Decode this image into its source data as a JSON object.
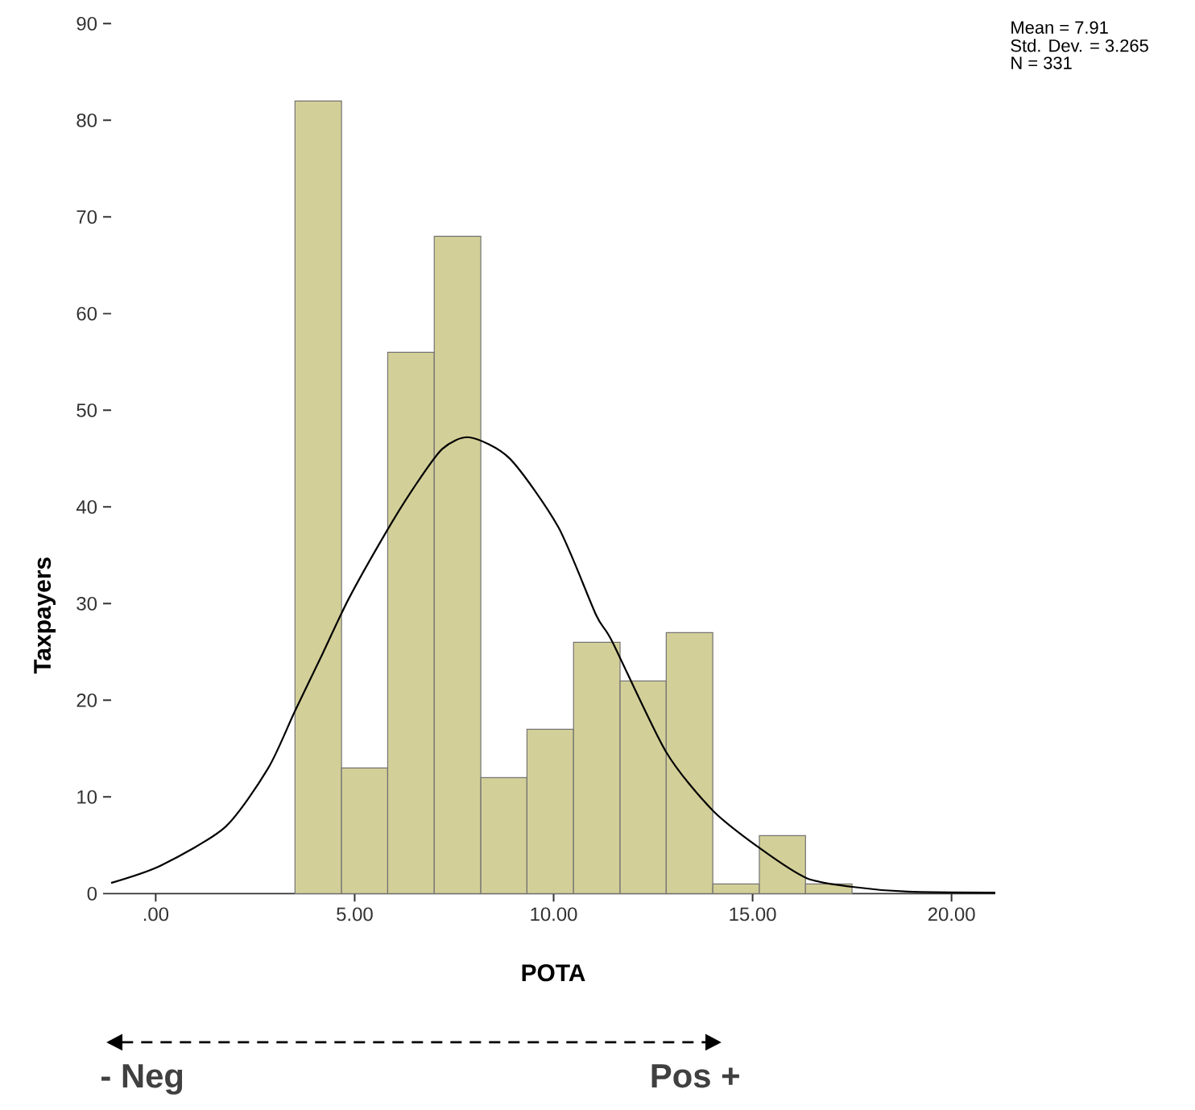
{
  "chart_data": {
    "type": "histogram",
    "xlabel": "POTA",
    "ylabel": "Taxpayers",
    "bins": [
      3.5,
      4.67,
      5.83,
      7.0,
      8.17,
      9.33,
      10.5,
      11.67,
      12.83,
      14.0,
      15.17,
      16.33,
      17.5
    ],
    "values": [
      82,
      13,
      56,
      68,
      12,
      17,
      26,
      22,
      27,
      1,
      6,
      1
    ],
    "color": "#d3cf98",
    "series": [
      {
        "type": "line",
        "color": "#000000",
        "x": [
          -1.12,
          0.13,
          1.75,
          2.83,
          3.49,
          4.18,
          4.85,
          5.79,
          6.47,
          7.2,
          7.89,
          8.9,
          10.12,
          11.07,
          11.47,
          12.82,
          14.0,
          15.18,
          16.36,
          17.51,
          18.9,
          21.1
        ],
        "values": [
          1.1,
          2.9,
          6.9,
          13,
          18.8,
          24.7,
          30.5,
          37.4,
          41.9,
          46,
          47.2,
          45,
          37.9,
          28.8,
          26.1,
          14.7,
          8.6,
          4.7,
          1.6,
          0.7,
          0.2,
          0.1
        ]
      }
    ],
    "xlim": [
      -1.12,
      21.1
    ],
    "ylim": [
      0,
      90
    ],
    "xticks": [
      {
        "value": 0,
        "label": ".00"
      },
      {
        "value": 5,
        "label": "5.00"
      },
      {
        "value": 10,
        "label": "10.00"
      },
      {
        "value": 15,
        "label": "15.00"
      },
      {
        "value": 20,
        "label": "20.00"
      }
    ],
    "yticks": [
      0,
      10,
      20,
      30,
      40,
      50,
      60,
      70,
      80,
      90
    ],
    "annotations": [
      "Mean = 7.91",
      "Std. Dev. = 3.265",
      "N = 331",
      "- Neg",
      "Pos +"
    ]
  }
}
